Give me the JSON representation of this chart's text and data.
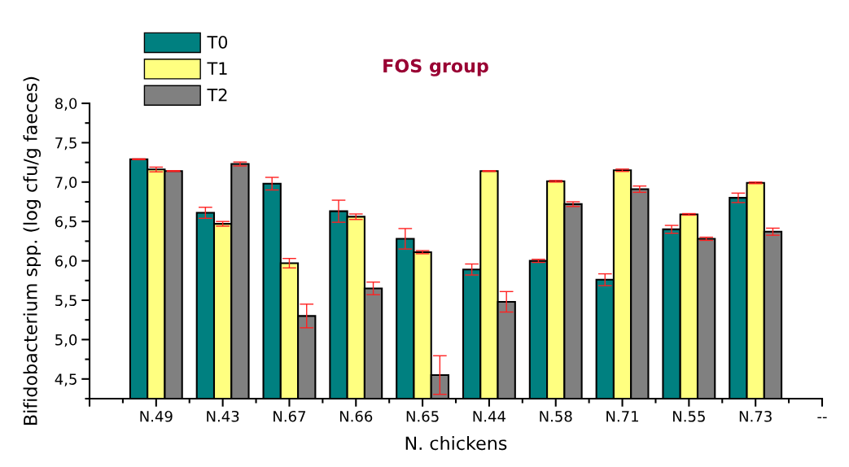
{
  "chart_data": {
    "type": "bar",
    "title": "FOS group",
    "xlabel": "N. chickens",
    "ylabel": "Bifidobacterium spp. (log cfu/g faeces)",
    "categories": [
      null,
      "N.49",
      "N.43",
      "N.67",
      "N.66",
      "N.65",
      "N.44",
      "N.58",
      "N.71",
      "N.55",
      "N.73",
      "--"
    ],
    "series": [
      {
        "name": "T0",
        "color": "#008080",
        "values": [
          null,
          7.29,
          6.61,
          6.98,
          6.63,
          6.28,
          5.89,
          6.0,
          5.76,
          6.4,
          6.8,
          null
        ],
        "errors": [
          null,
          0.005,
          0.07,
          0.08,
          0.14,
          0.13,
          0.07,
          0.02,
          0.075,
          0.05,
          0.06,
          null
        ]
      },
      {
        "name": "T1",
        "color": "#ffff80",
        "values": [
          null,
          7.16,
          6.47,
          5.97,
          6.56,
          6.11,
          7.14,
          7.01,
          7.15,
          6.59,
          6.99,
          null
        ],
        "errors": [
          null,
          0.03,
          0.03,
          0.06,
          0.035,
          0.02,
          0.005,
          0.01,
          0.015,
          0.01,
          0.01,
          null
        ]
      },
      {
        "name": "T2",
        "color": "#808080",
        "values": [
          null,
          7.14,
          7.23,
          5.3,
          5.65,
          4.55,
          5.48,
          6.72,
          6.91,
          6.28,
          6.37,
          null
        ],
        "errors": [
          null,
          0.005,
          0.025,
          0.15,
          0.08,
          0.245,
          0.13,
          0.03,
          0.04,
          0.02,
          0.045,
          null
        ]
      }
    ],
    "ylim": [
      4.25,
      8.0
    ],
    "yticks": [
      {
        "value": 4.25,
        "label": null
      },
      {
        "value": 4.5,
        "label": "4,5"
      },
      {
        "value": 4.75,
        "label": null
      },
      {
        "value": 5.0,
        "label": "5,0"
      },
      {
        "value": 5.25,
        "label": null
      },
      {
        "value": 5.5,
        "label": "5,5"
      },
      {
        "value": 5.75,
        "label": null
      },
      {
        "value": 6.0,
        "label": "6,0"
      },
      {
        "value": 6.25,
        "label": null
      },
      {
        "value": 6.5,
        "label": "6,5"
      },
      {
        "value": 6.75,
        "label": null
      },
      {
        "value": 7.0,
        "label": "7,0"
      },
      {
        "value": 7.25,
        "label": null
      },
      {
        "value": 7.5,
        "label": "7,5"
      },
      {
        "value": 7.75,
        "label": null
      },
      {
        "value": 8.0,
        "label": "8,0"
      }
    ],
    "grid": false,
    "legend": "top left"
  }
}
